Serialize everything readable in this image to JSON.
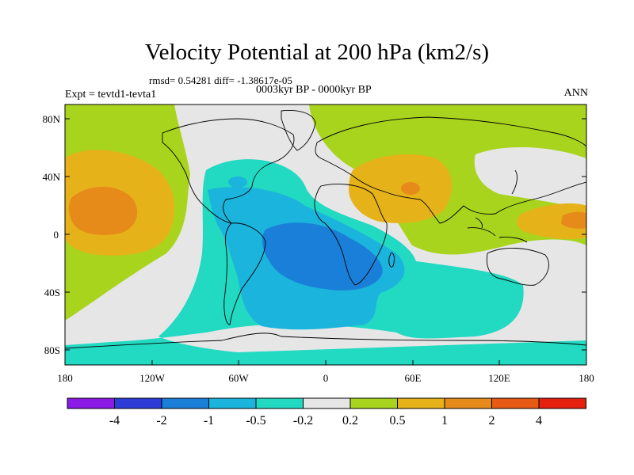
{
  "header": {
    "title": "Velocity Potential at 200 hPa (km2/s)",
    "stats": "rmsd= 0.54281 diff= -1.38617e-05",
    "period": "0003kyr BP - 0000kyr BP",
    "experiment": "Expt = tevtd1-tevta1",
    "season": "ANN"
  },
  "axes": {
    "lat_ticks": [
      "80N",
      "40N",
      "0",
      "40S",
      "80S"
    ],
    "lon_ticks": [
      "180",
      "120W",
      "60W",
      "0",
      "60E",
      "120E",
      "180"
    ]
  },
  "colorbar": {
    "labels": [
      "-4",
      "-2",
      "-1",
      "-0.5",
      "-0.2",
      "0.2",
      "0.5",
      "1",
      "2",
      "4"
    ],
    "colors": [
      "#8c1ae6",
      "#2d3cd6",
      "#1a7fd8",
      "#1ab4dc",
      "#22d9c2",
      "#e6e6e6",
      "#a8d41e",
      "#e6b21a",
      "#e68a1a",
      "#e65a14",
      "#e6200e"
    ]
  }
}
